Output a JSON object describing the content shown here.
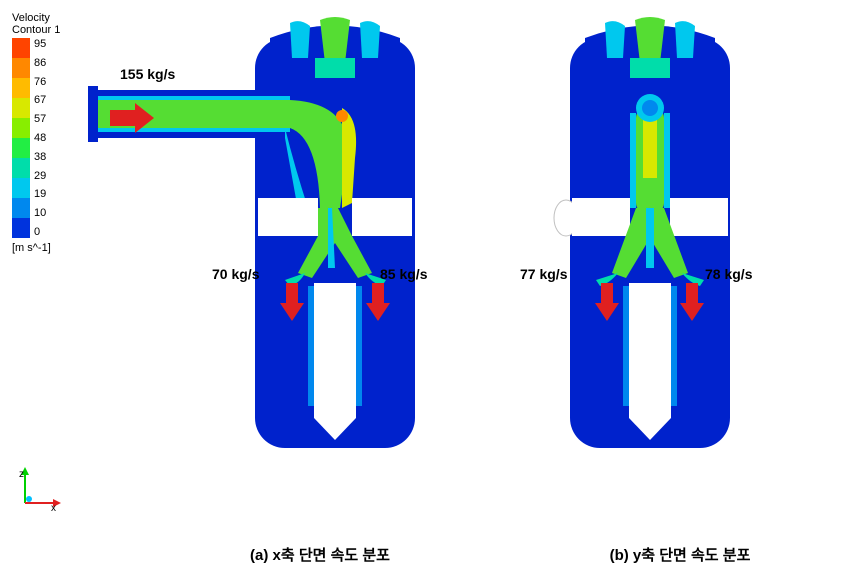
{
  "legend": {
    "title": "Velocity\nContour 1",
    "unit": "[m s^-1]",
    "ticks": [
      "95",
      "86",
      "76",
      "67",
      "57",
      "48",
      "38",
      "29",
      "19",
      "10",
      "0"
    ],
    "colors": [
      "#ff4400",
      "#ff8800",
      "#ffbb00",
      "#d8e800",
      "#88ee00",
      "#22ee44",
      "#00ddaa",
      "#00c8ee",
      "#0088ee",
      "#0033dd"
    ]
  },
  "panel_a": {
    "inlet_label": "155 kg/s",
    "outlet_left": "70 kg/s",
    "outlet_right": "85 kg/s",
    "caption": "(a) x축 단면 속도 분포"
  },
  "panel_b": {
    "outlet_left": "77 kg/s",
    "outlet_right": "78 kg/s",
    "caption": "(b) y축 단면 속도 분포"
  },
  "colors": {
    "vessel_blue": "#0022cc",
    "flow_green": "#55dd33",
    "flow_yellow": "#d8e800",
    "flow_cyan": "#00c8ee",
    "flow_red": "#ff4400",
    "arrow_red": "#e02020",
    "white": "#ffffff",
    "axis_z": "#00d000",
    "axis_x": "#e02020",
    "axis_dot": "#00c0ff"
  },
  "axes": {
    "z": "z",
    "x": "x"
  }
}
